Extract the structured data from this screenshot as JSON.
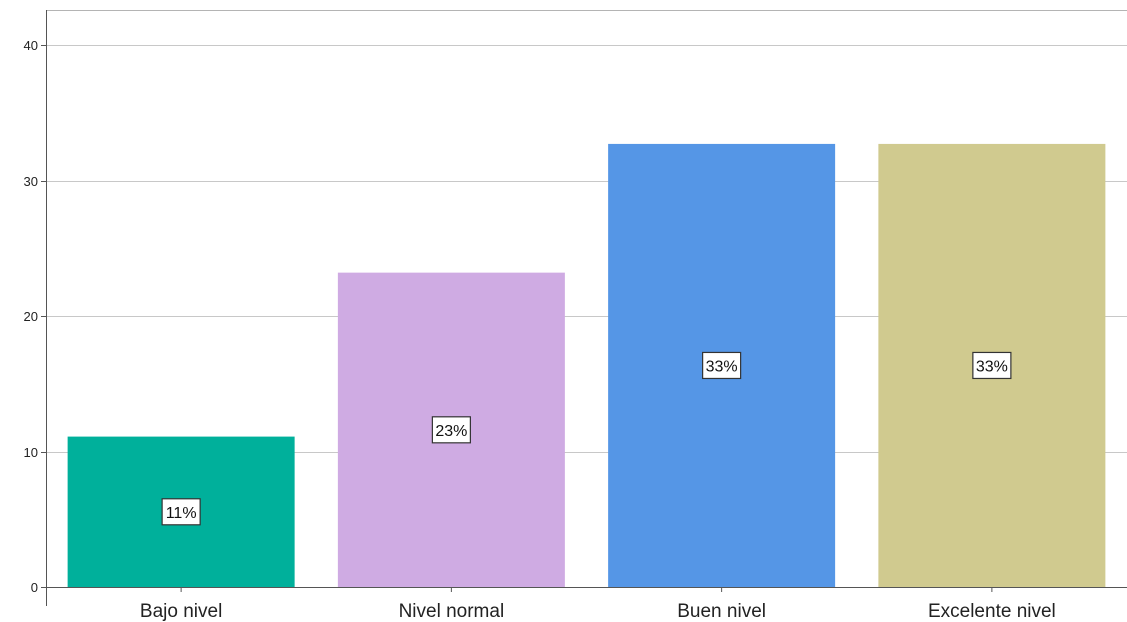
{
  "chart_data": {
    "type": "bar",
    "categories": [
      "Bajo nivel",
      "Nivel normal",
      "Buen nivel",
      "Excelente nivel"
    ],
    "values": [
      11.1,
      23.2,
      32.7,
      32.7
    ],
    "data_labels": [
      "11%",
      "23%",
      "33%",
      "33%"
    ],
    "title": "",
    "xlabel": "",
    "ylabel": "",
    "ylim": [
      0,
      40
    ],
    "yticks": [
      0,
      10,
      20,
      30,
      40
    ],
    "grid": true,
    "colors": [
      "#00b09b",
      "#cfabe3",
      "#5596e6",
      "#d0ca8f"
    ]
  }
}
